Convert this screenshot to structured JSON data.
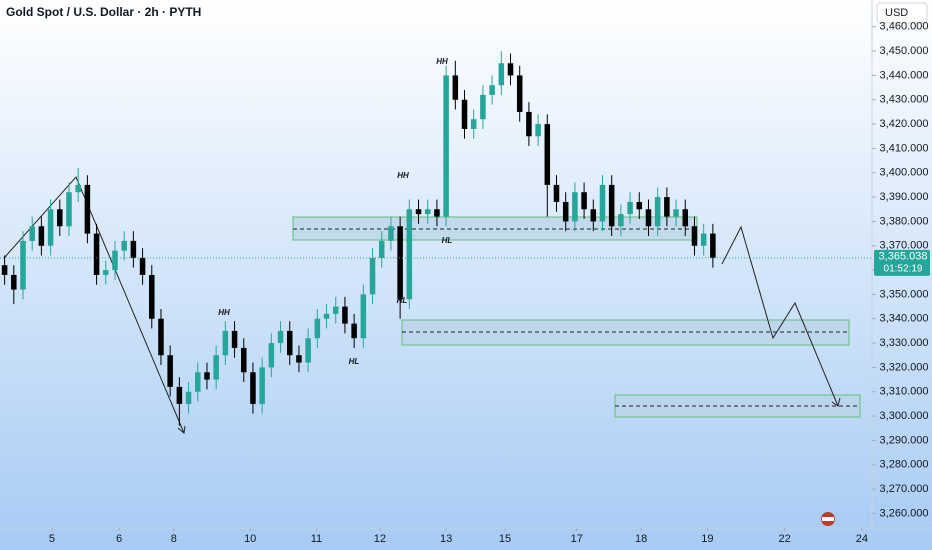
{
  "chart_data": {
    "type": "candlestick",
    "title": "Gold Spot / U.S. Dollar · 2h · PYTH",
    "currency": "USD",
    "up_color": "#26a69a",
    "down_color": "#000000",
    "open": [
      3362,
      3358,
      3352,
      3372,
      3378,
      3370,
      3385,
      3378,
      3392,
      3395,
      3375,
      3358,
      3360,
      3368,
      3372,
      3365,
      3358,
      3340,
      3325,
      3312,
      3305,
      3310,
      3318,
      3315,
      3325,
      3335,
      3328,
      3318,
      3305,
      3320,
      3330,
      3335,
      3325,
      3322,
      3332,
      3340,
      3342,
      3345,
      3338,
      3332,
      3350,
      3365,
      3372,
      3378,
      3348,
      3385,
      3383,
      3385,
      3382,
      3440,
      3430,
      3418,
      3422,
      3432,
      3436,
      3445,
      3440,
      3425,
      3415,
      3420,
      3395,
      3388,
      3380,
      3392,
      3385,
      3380,
      3395,
      3378,
      3383,
      3388,
      3385,
      3378,
      3390,
      3382,
      3385,
      3378,
      3370,
      3375
    ],
    "high": [
      3366,
      3362,
      3376,
      3382,
      3382,
      3389,
      3389,
      3396,
      3402,
      3399,
      3379,
      3364,
      3372,
      3376,
      3376,
      3369,
      3362,
      3344,
      3329,
      3316,
      3314,
      3322,
      3322,
      3329,
      3339,
      3339,
      3332,
      3322,
      3324,
      3334,
      3339,
      3339,
      3329,
      3336,
      3344,
      3346,
      3349,
      3349,
      3342,
      3354,
      3369,
      3376,
      3382,
      3382,
      3389,
      3389,
      3389,
      3389,
      3444,
      3446,
      3434,
      3426,
      3436,
      3440,
      3450,
      3449,
      3444,
      3429,
      3424,
      3424,
      3399,
      3392,
      3396,
      3396,
      3389,
      3399,
      3399,
      3387,
      3392,
      3392,
      3389,
      3394,
      3394,
      3389,
      3389,
      3382,
      3379,
      3379
    ],
    "low": [
      3354,
      3346,
      3348,
      3368,
      3366,
      3366,
      3374,
      3374,
      3388,
      3371,
      3354,
      3354,
      3356,
      3364,
      3361,
      3354,
      3336,
      3321,
      3308,
      3296,
      3301,
      3306,
      3311,
      3311,
      3321,
      3324,
      3314,
      3301,
      3301,
      3316,
      3326,
      3321,
      3318,
      3318,
      3328,
      3336,
      3338,
      3334,
      3328,
      3328,
      3346,
      3361,
      3368,
      3340,
      3344,
      3379,
      3379,
      3378,
      3378,
      3426,
      3414,
      3414,
      3418,
      3428,
      3432,
      3436,
      3421,
      3411,
      3411,
      3382,
      3384,
      3376,
      3376,
      3381,
      3376,
      3376,
      3374,
      3374,
      3379,
      3381,
      3374,
      3374,
      3378,
      3378,
      3374,
      3366,
      3366,
      3361
    ],
    "close": [
      3358,
      3352,
      3372,
      3378,
      3370,
      3385,
      3378,
      3392,
      3395,
      3375,
      3358,
      3360,
      3368,
      3372,
      3365,
      3358,
      3340,
      3325,
      3312,
      3305,
      3310,
      3318,
      3315,
      3325,
      3335,
      3328,
      3318,
      3305,
      3320,
      3330,
      3335,
      3325,
      3322,
      3332,
      3340,
      3342,
      3345,
      3338,
      3332,
      3350,
      3365,
      3372,
      3378,
      3348,
      3385,
      3383,
      3385,
      3382,
      3440,
      3430,
      3418,
      3422,
      3432,
      3436,
      3445,
      3440,
      3425,
      3415,
      3420,
      3395,
      3388,
      3380,
      3392,
      3385,
      3380,
      3395,
      3378,
      3383,
      3388,
      3385,
      3378,
      3390,
      3382,
      3385,
      3378,
      3370,
      3375,
      3365
    ],
    "xlim": [
      -0.5,
      94.3
    ],
    "xticks": [
      {
        "value": 5.15,
        "label": "5"
      },
      {
        "value": 12.44,
        "label": "6"
      },
      {
        "value": 18.4,
        "label": "8"
      },
      {
        "value": 26.7,
        "label": "10"
      },
      {
        "value": 33.9,
        "label": "11"
      },
      {
        "value": 40.8,
        "label": "12"
      },
      {
        "value": 48.0,
        "label": "13"
      },
      {
        "value": 54.4,
        "label": "15"
      },
      {
        "value": 62.2,
        "label": "17"
      },
      {
        "value": 69.2,
        "label": "18"
      },
      {
        "value": 76.4,
        "label": "19"
      },
      {
        "value": 84.8,
        "label": "22"
      },
      {
        "value": 93.2,
        "label": "24"
      }
    ],
    "ylim": [
      3254,
      3471
    ],
    "yticks": [
      {
        "value": 3260,
        "label": "3,260.000"
      },
      {
        "value": 3270,
        "label": "3,270.000"
      },
      {
        "value": 3280,
        "label": "3,280.000"
      },
      {
        "value": 3290,
        "label": "3,290.000"
      },
      {
        "value": 3300,
        "label": "3,300.000"
      },
      {
        "value": 3310,
        "label": "3,310.000"
      },
      {
        "value": 3320,
        "label": "3,320.000"
      },
      {
        "value": 3330,
        "label": "3,330.000"
      },
      {
        "value": 3340,
        "label": "3,340.000"
      },
      {
        "value": 3350,
        "label": "3,350.000"
      },
      {
        "value": 3360,
        "label": "3,360.000"
      },
      {
        "value": 3370,
        "label": "3,370.000"
      },
      {
        "value": 3380,
        "label": "3,380.000"
      },
      {
        "value": 3390,
        "label": "3,390.000"
      },
      {
        "value": 3400,
        "label": "3,400.000"
      },
      {
        "value": 3410,
        "label": "3,410.000"
      },
      {
        "value": 3420,
        "label": "3,420.000"
      },
      {
        "value": 3430,
        "label": "3,430.000"
      },
      {
        "value": 3440,
        "label": "3,440.000"
      },
      {
        "value": 3450,
        "label": "3,450.000"
      },
      {
        "value": 3460,
        "label": "3,460.000"
      }
    ],
    "last_price": {
      "value": 3365.038,
      "label": "3,365.038"
    },
    "countdown": "01:52:19",
    "annotations": [
      "HH",
      "HH",
      "HH",
      "HL",
      "HL",
      "HL"
    ]
  }
}
